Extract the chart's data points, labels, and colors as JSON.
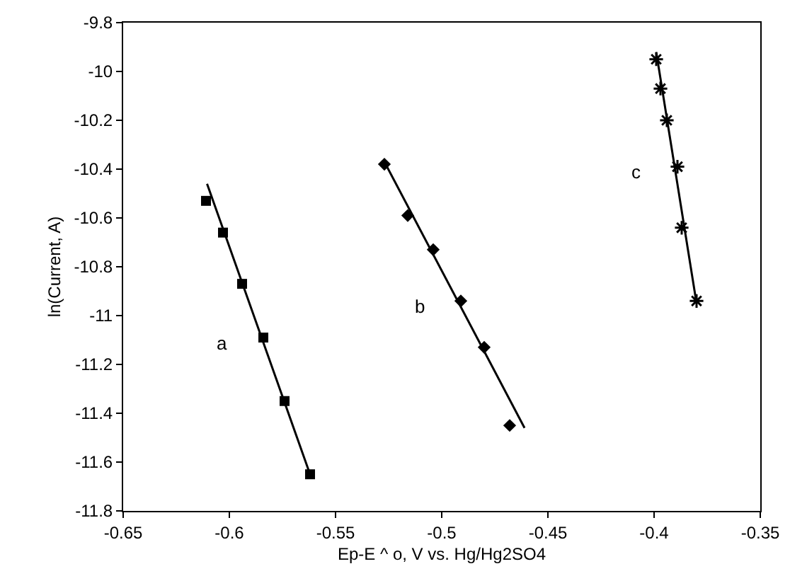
{
  "chart_data": {
    "type": "scatter",
    "xlabel": "Ep-E ^ o, V vs. Hg/Hg2SO4",
    "ylabel": "ln(Current, A)",
    "xlim": [
      -0.65,
      -0.35
    ],
    "xticks": [
      -0.65,
      -0.6,
      -0.55,
      -0.5,
      -0.45,
      -0.4,
      -0.35
    ],
    "ylim": [
      -11.8,
      -9.8
    ],
    "yticks": [
      -11.8,
      -11.6,
      -11.4,
      -11.2,
      -11,
      -10.8,
      -10.6,
      -10.4,
      -10.2,
      -10,
      -9.8
    ],
    "grid": false,
    "series": [
      {
        "marker": "square",
        "color": "#000000",
        "x": [
          -0.611,
          -0.603,
          -0.594,
          -0.584,
          -0.574,
          -0.562
        ],
        "values": [
          -10.53,
          -10.66,
          -10.87,
          -11.09,
          -11.35,
          -11.65
        ]
      },
      {
        "marker": "diamond",
        "color": "#000000",
        "x": [
          -0.527,
          -0.516,
          -0.504,
          -0.491,
          -0.48,
          -0.468
        ],
        "values": [
          -10.38,
          -10.59,
          -10.73,
          -10.94,
          -11.13,
          -11.45
        ]
      },
      {
        "marker": "cross",
        "color": "#000000",
        "x": [
          -0.399,
          -0.397,
          -0.394,
          -0.389,
          -0.387,
          -0.38
        ],
        "values": [
          -9.95,
          -10.07,
          -10.2,
          -10.39,
          -10.64,
          -10.94
        ]
      },
      {
        "type": "line",
        "marker": "none",
        "line_style": "solid",
        "color": "#000000",
        "x": [
          -0.6105,
          -0.562
        ],
        "values": [
          -10.46,
          -11.65
        ]
      },
      {
        "type": "line",
        "marker": "none",
        "line_style": "solid",
        "color": "#000000",
        "x": [
          -0.527,
          -0.461
        ],
        "values": [
          -10.37,
          -11.46
        ]
      },
      {
        "type": "line",
        "marker": "none",
        "line_style": "solid",
        "color": "#000000",
        "x": [
          -0.399,
          -0.38
        ],
        "values": [
          -9.92,
          -10.95
        ]
      }
    ],
    "annotations": [
      "a",
      "b",
      "c"
    ]
  }
}
